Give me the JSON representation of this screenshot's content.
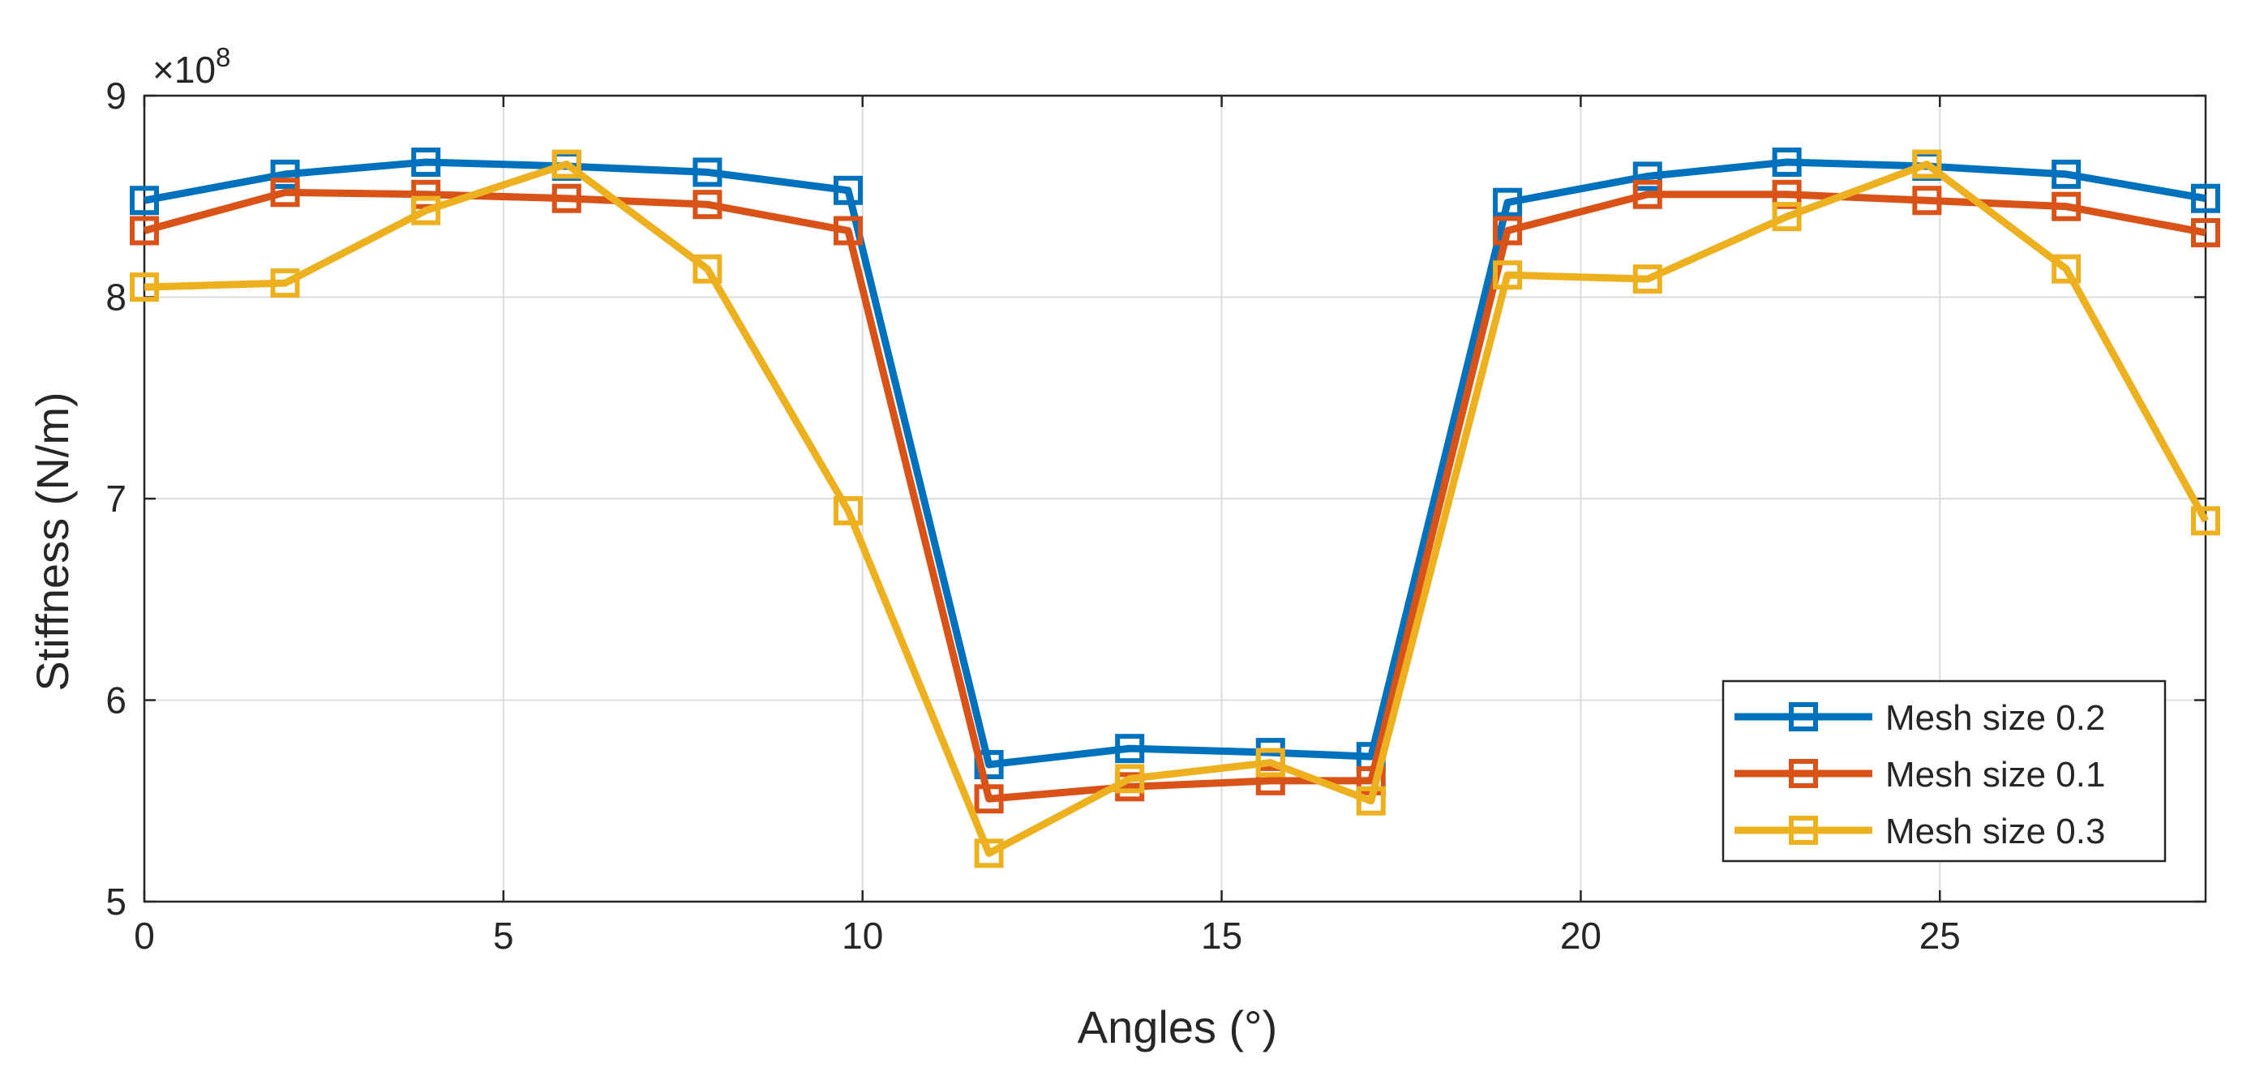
{
  "chart_data": {
    "type": "line",
    "title": "",
    "xlabel": "Angles (°)",
    "ylabel": "Stiffness (N/m)",
    "y_multiplier": "×10",
    "y_multiplier_exp": "8",
    "xlim": [
      0,
      28.7
    ],
    "ylim": [
      5,
      9
    ],
    "xticks": [
      0,
      5,
      10,
      15,
      20,
      25
    ],
    "xtick_labels": [
      "0",
      "5",
      "10",
      "15",
      "20",
      "25"
    ],
    "yticks": [
      5,
      6,
      7,
      8,
      9
    ],
    "ytick_labels": [
      "5",
      "6",
      "7",
      "8",
      "9"
    ],
    "grid": true,
    "legend_position": "bottom-right",
    "x": [
      0,
      1.96,
      3.92,
      5.88,
      7.84,
      9.8,
      11.76,
      13.72,
      15.68,
      17.08,
      18.98,
      20.93,
      22.87,
      24.82,
      26.76,
      28.7
    ],
    "series": [
      {
        "name": "Mesh size 0.2",
        "color": "#0072BD",
        "marker": "square",
        "values": [
          8.48,
          8.61,
          8.67,
          8.65,
          8.62,
          8.53,
          5.68,
          5.76,
          5.74,
          5.72,
          8.47,
          8.6,
          8.67,
          8.65,
          8.61,
          8.49
        ]
      },
      {
        "name": "Mesh size 0.1",
        "color": "#D95319",
        "marker": "square",
        "values": [
          8.33,
          8.52,
          8.51,
          8.49,
          8.46,
          8.33,
          5.51,
          5.57,
          5.6,
          5.6,
          8.33,
          8.51,
          8.51,
          8.48,
          8.45,
          8.32
        ]
      },
      {
        "name": "Mesh size 0.3",
        "color": "#EDB120",
        "marker": "square",
        "values": [
          8.05,
          8.07,
          8.43,
          8.66,
          8.14,
          6.94,
          5.24,
          5.61,
          5.69,
          5.5,
          8.11,
          8.09,
          8.4,
          8.66,
          8.14,
          6.89
        ]
      }
    ]
  }
}
